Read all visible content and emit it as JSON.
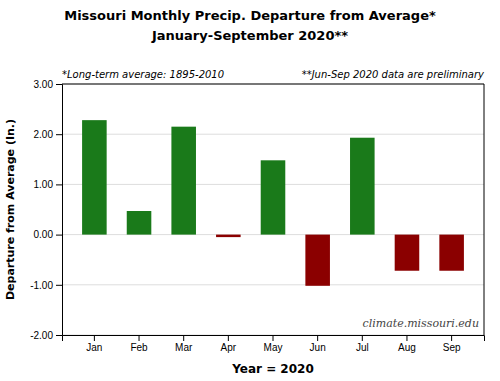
{
  "chart_data": {
    "type": "bar",
    "title": "Missouri Monthly Precip. Departure from Average*",
    "subtitle": "January-September 2020**",
    "annotations": [
      "*Long-term average: 1895-2010",
      "**Jun-Sep 2020 data are preliminary",
      "climate.missouri.edu"
    ],
    "xlabel": "Year = 2020",
    "ylabel": "Departure from Average (In.)",
    "categories": [
      "Jan",
      "Feb",
      "Mar",
      "Apr",
      "May",
      "Jun",
      "Jul",
      "Aug",
      "Sep"
    ],
    "values": [
      2.28,
      0.47,
      2.15,
      -0.05,
      1.48,
      -1.02,
      1.93,
      -0.72,
      -0.72
    ],
    "colors": [
      "#1a7a1a",
      "#1a7a1a",
      "#1a7a1a",
      "#8b0000",
      "#1a7a1a",
      "#8b0000",
      "#1a7a1a",
      "#8b0000",
      "#8b0000"
    ],
    "ylim": [
      -2.0,
      3.0
    ],
    "yticks": [
      {
        "value": -2.0,
        "label": "-2.00"
      },
      {
        "value": -1.0,
        "label": "-1.00"
      },
      {
        "value": 0.0,
        "label": "0.00"
      },
      {
        "value": 1.0,
        "label": "1.00"
      },
      {
        "value": 2.0,
        "label": "2.00"
      },
      {
        "value": 3.0,
        "label": "3.00"
      }
    ],
    "grid": true
  }
}
